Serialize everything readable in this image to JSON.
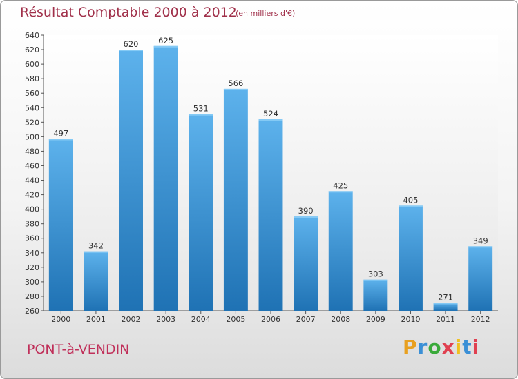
{
  "header": {
    "title": "Résultat Comptable 2000 à 2012",
    "subtitle": "(en milliers d'€)"
  },
  "footer": {
    "city": "PONT-à-VENDIN",
    "logo_text": "Proxiti",
    "logo_colors": [
      "#e8a020",
      "#3a8fd6",
      "#3aaa3a",
      "#e04050",
      "#f0c020",
      "#3a8fd6",
      "#e04050"
    ]
  },
  "colors": {
    "bar_top": "#5db2ec",
    "bar_bottom": "#1f72b4",
    "title": "#a0304a",
    "city": "#c0305a"
  },
  "chart_data": {
    "type": "bar",
    "title": "Résultat Comptable 2000 à 2012",
    "subtitle": "(en milliers d'€)",
    "xlabel": "",
    "ylabel": "",
    "categories": [
      "2000",
      "2001",
      "2002",
      "2003",
      "2004",
      "2005",
      "2006",
      "2007",
      "2008",
      "2009",
      "2010",
      "2011",
      "2012"
    ],
    "values": [
      497,
      342,
      620,
      625,
      531,
      566,
      524,
      390,
      425,
      303,
      405,
      271,
      349
    ],
    "ylim": [
      260,
      640
    ],
    "yticks": [
      260,
      280,
      300,
      320,
      340,
      360,
      380,
      400,
      420,
      440,
      460,
      480,
      500,
      520,
      540,
      560,
      580,
      600,
      620,
      640
    ],
    "grid": false,
    "legend": "none"
  }
}
